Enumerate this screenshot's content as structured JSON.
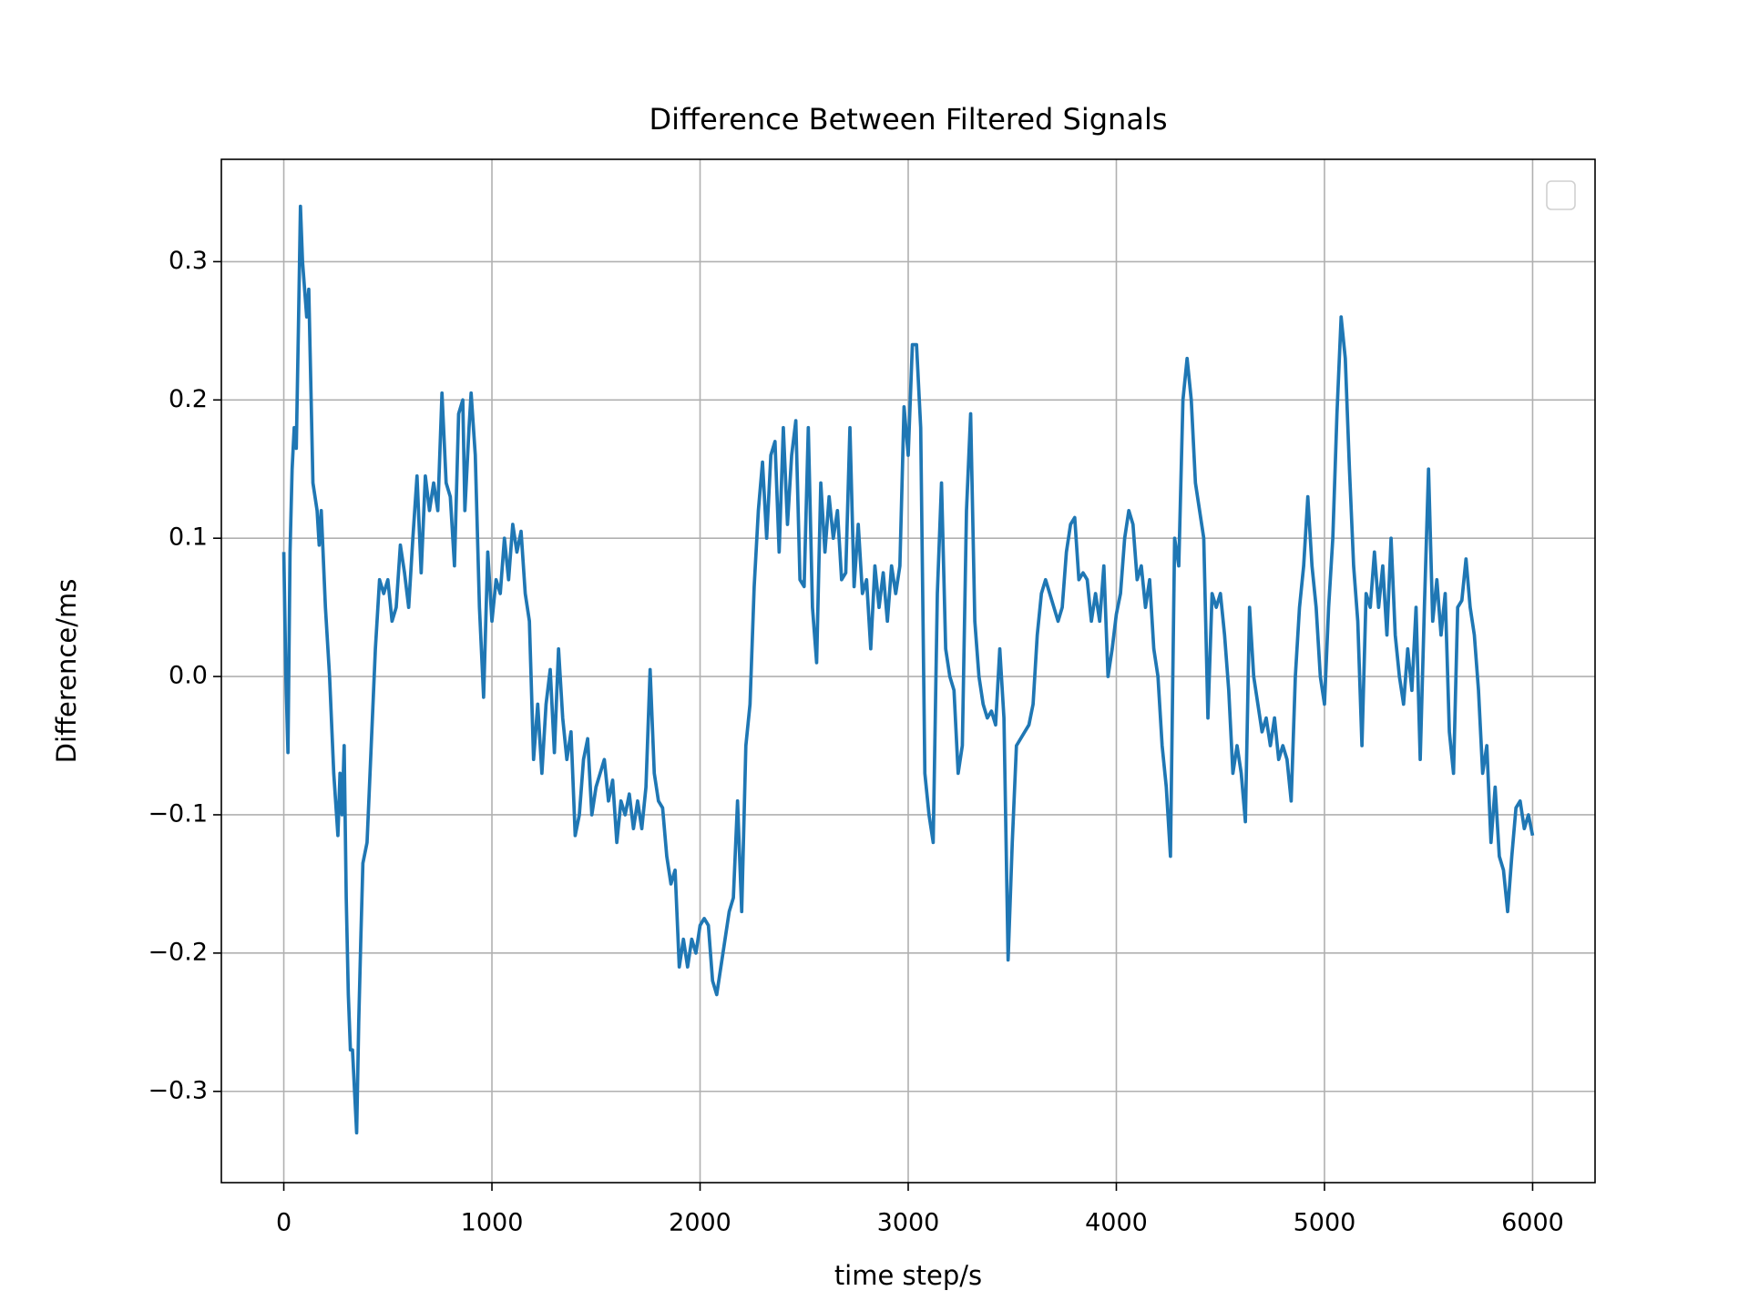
{
  "chart_data": {
    "type": "line",
    "title": "Difference Between Filtered Signals",
    "x_label": "time step/s",
    "y_label": "Difference/ms",
    "x": [
      0,
      10,
      20,
      30,
      40,
      50,
      60,
      70,
      80,
      90,
      100,
      110,
      120,
      140,
      160,
      170,
      180,
      200,
      220,
      240,
      260,
      270,
      280,
      290,
      300,
      310,
      320,
      330,
      340,
      350,
      360,
      370,
      380,
      400,
      420,
      440,
      460,
      480,
      500,
      520,
      540,
      560,
      580,
      600,
      620,
      640,
      660,
      680,
      700,
      720,
      740,
      760,
      780,
      800,
      820,
      840,
      860,
      870,
      890,
      900,
      920,
      940,
      960,
      980,
      1000,
      1020,
      1040,
      1060,
      1080,
      1100,
      1120,
      1140,
      1160,
      1180,
      1200,
      1220,
      1240,
      1260,
      1280,
      1300,
      1320,
      1340,
      1360,
      1380,
      1400,
      1420,
      1440,
      1460,
      1480,
      1500,
      1520,
      1540,
      1560,
      1580,
      1600,
      1620,
      1640,
      1660,
      1680,
      1700,
      1720,
      1740,
      1760,
      1780,
      1800,
      1820,
      1840,
      1860,
      1880,
      1900,
      1920,
      1940,
      1960,
      1980,
      2000,
      2020,
      2040,
      2060,
      2080,
      2100,
      2120,
      2140,
      2160,
      2180,
      2200,
      2220,
      2240,
      2260,
      2280,
      2300,
      2320,
      2340,
      2360,
      2380,
      2400,
      2420,
      2440,
      2460,
      2480,
      2500,
      2520,
      2540,
      2560,
      2580,
      2600,
      2620,
      2640,
      2660,
      2680,
      2700,
      2720,
      2740,
      2760,
      2780,
      2800,
      2820,
      2840,
      2860,
      2880,
      2900,
      2920,
      2940,
      2960,
      2980,
      3000,
      3020,
      3040,
      3060,
      3080,
      3100,
      3120,
      3140,
      3160,
      3180,
      3200,
      3220,
      3240,
      3260,
      3280,
      3300,
      3320,
      3340,
      3360,
      3380,
      3400,
      3420,
      3440,
      3460,
      3480,
      3500,
      3520,
      3540,
      3560,
      3580,
      3600,
      3620,
      3640,
      3660,
      3680,
      3700,
      3720,
      3740,
      3760,
      3780,
      3800,
      3820,
      3840,
      3860,
      3880,
      3900,
      3920,
      3940,
      3960,
      3980,
      4000,
      4020,
      4040,
      4060,
      4080,
      4100,
      4120,
      4140,
      4160,
      4180,
      4200,
      4220,
      4240,
      4260,
      4280,
      4300,
      4320,
      4340,
      4360,
      4380,
      4400,
      4420,
      4440,
      4460,
      4480,
      4500,
      4520,
      4540,
      4560,
      4580,
      4600,
      4620,
      4640,
      4660,
      4680,
      4700,
      4720,
      4740,
      4760,
      4780,
      4800,
      4820,
      4840,
      4860,
      4880,
      4900,
      4920,
      4940,
      4960,
      4980,
      5000,
      5020,
      5040,
      5060,
      5080,
      5100,
      5120,
      5140,
      5160,
      5180,
      5200,
      5220,
      5240,
      5260,
      5280,
      5300,
      5320,
      5340,
      5360,
      5380,
      5400,
      5420,
      5440,
      5460,
      5480,
      5500,
      5520,
      5540,
      5560,
      5580,
      5600,
      5620,
      5640,
      5660,
      5680,
      5700,
      5720,
      5740,
      5760,
      5780,
      5800,
      5820,
      5840,
      5860,
      5880,
      5900,
      5920,
      5940,
      5960,
      5980,
      6000
    ],
    "series": [
      {
        "color": "#1f77b4",
        "values": [
          0.09,
          0.0,
          -0.055,
          0.09,
          0.15,
          0.18,
          0.165,
          0.25,
          0.34,
          0.3,
          0.28,
          0.26,
          0.28,
          0.14,
          0.12,
          0.095,
          0.12,
          0.05,
          0.0,
          -0.07,
          -0.115,
          -0.07,
          -0.1,
          -0.05,
          -0.16,
          -0.23,
          -0.27,
          -0.27,
          -0.3,
          -0.33,
          -0.25,
          -0.19,
          -0.135,
          -0.12,
          -0.05,
          0.02,
          0.07,
          0.06,
          0.07,
          0.04,
          0.05,
          0.095,
          0.075,
          0.05,
          0.1,
          0.145,
          0.075,
          0.145,
          0.12,
          0.14,
          0.12,
          0.205,
          0.14,
          0.13,
          0.08,
          0.19,
          0.2,
          0.12,
          0.18,
          0.205,
          0.16,
          0.05,
          -0.015,
          0.09,
          0.04,
          0.07,
          0.06,
          0.1,
          0.07,
          0.11,
          0.09,
          0.105,
          0.06,
          0.04,
          -0.06,
          -0.02,
          -0.07,
          -0.02,
          0.005,
          -0.055,
          0.02,
          -0.03,
          -0.06,
          -0.04,
          -0.115,
          -0.1,
          -0.06,
          -0.045,
          -0.1,
          -0.08,
          -0.07,
          -0.06,
          -0.09,
          -0.075,
          -0.12,
          -0.09,
          -0.1,
          -0.085,
          -0.11,
          -0.09,
          -0.11,
          -0.08,
          0.005,
          -0.07,
          -0.09,
          -0.095,
          -0.13,
          -0.15,
          -0.14,
          -0.21,
          -0.19,
          -0.21,
          -0.19,
          -0.2,
          -0.18,
          -0.175,
          -0.18,
          -0.22,
          -0.23,
          -0.21,
          -0.19,
          -0.17,
          -0.16,
          -0.09,
          -0.17,
          -0.05,
          -0.02,
          0.065,
          0.12,
          0.155,
          0.1,
          0.16,
          0.17,
          0.09,
          0.18,
          0.11,
          0.16,
          0.185,
          0.07,
          0.065,
          0.18,
          0.05,
          0.01,
          0.14,
          0.09,
          0.13,
          0.1,
          0.12,
          0.07,
          0.075,
          0.18,
          0.065,
          0.11,
          0.06,
          0.07,
          0.02,
          0.08,
          0.05,
          0.075,
          0.04,
          0.08,
          0.06,
          0.08,
          0.195,
          0.16,
          0.24,
          0.24,
          0.18,
          -0.07,
          -0.1,
          -0.12,
          0.06,
          0.14,
          0.02,
          0.0,
          -0.01,
          -0.07,
          -0.05,
          0.12,
          0.19,
          0.04,
          0.0,
          -0.02,
          -0.03,
          -0.025,
          -0.035,
          0.02,
          -0.03,
          -0.205,
          -0.12,
          -0.05,
          -0.045,
          -0.04,
          -0.035,
          -0.02,
          0.03,
          0.06,
          0.07,
          0.06,
          0.05,
          0.04,
          0.05,
          0.09,
          0.11,
          0.115,
          0.07,
          0.075,
          0.07,
          0.04,
          0.06,
          0.04,
          0.08,
          0.0,
          0.02,
          0.045,
          0.06,
          0.1,
          0.12,
          0.11,
          0.07,
          0.08,
          0.05,
          0.07,
          0.02,
          0.0,
          -0.05,
          -0.08,
          -0.13,
          0.1,
          0.08,
          0.2,
          0.23,
          0.2,
          0.14,
          0.12,
          0.1,
          -0.03,
          0.06,
          0.05,
          0.06,
          0.03,
          -0.01,
          -0.07,
          -0.05,
          -0.07,
          -0.105,
          0.05,
          0.0,
          -0.02,
          -0.04,
          -0.03,
          -0.05,
          -0.03,
          -0.06,
          -0.05,
          -0.06,
          -0.09,
          0.0,
          0.05,
          0.08,
          0.13,
          0.08,
          0.05,
          0.0,
          -0.02,
          0.05,
          0.1,
          0.19,
          0.26,
          0.23,
          0.15,
          0.08,
          0.04,
          -0.05,
          0.06,
          0.05,
          0.09,
          0.05,
          0.08,
          0.03,
          0.1,
          0.03,
          0.0,
          -0.02,
          0.02,
          -0.01,
          0.05,
          -0.06,
          0.05,
          0.15,
          0.04,
          0.07,
          0.03,
          0.06,
          -0.04,
          -0.07,
          0.05,
          0.055,
          0.085,
          0.05,
          0.03,
          -0.01,
          -0.07,
          -0.05,
          -0.12,
          -0.08,
          -0.13,
          -0.14,
          -0.17,
          -0.13,
          -0.095,
          -0.09,
          -0.11,
          -0.1,
          -0.115
        ]
      }
    ],
    "xlim": [
      -300,
      6300
    ],
    "xticks": [
      0,
      1000,
      2000,
      3000,
      4000,
      5000,
      6000
    ],
    "ylim": [
      -0.366,
      0.374
    ],
    "yticks": [
      {
        "value": -0.3,
        "label": "−0.3"
      },
      {
        "value": -0.2,
        "label": "−0.2"
      },
      {
        "value": -0.1,
        "label": "−0.1"
      },
      {
        "value": 0,
        "label": "0.0"
      },
      0.1,
      0.2,
      0.3
    ],
    "grid": true,
    "legend": "upper right"
  }
}
